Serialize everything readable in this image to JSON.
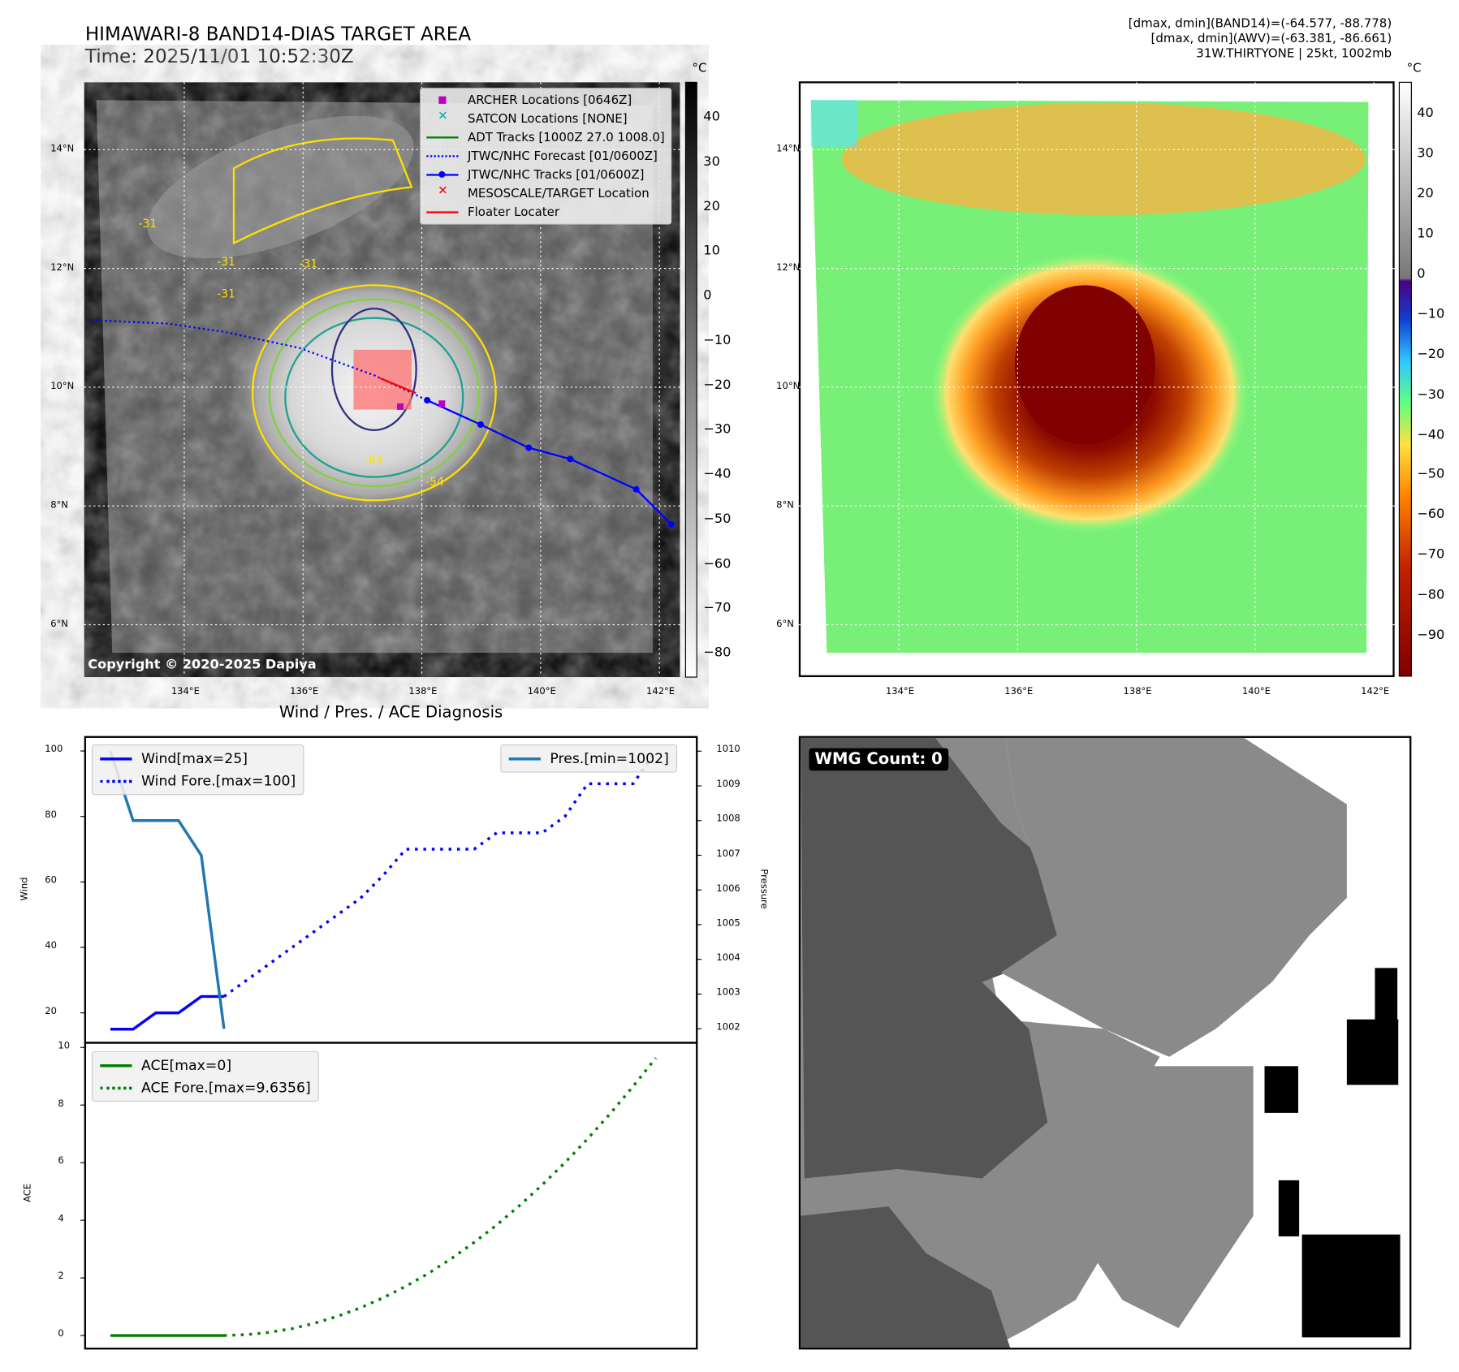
{
  "header": {
    "title_line1": "HIMAWARI-8 BAND14-DIAS TARGET AREA",
    "title_line2": "Time: 2025/11/01 10:52:30Z",
    "info_line1": "[dmax, dmin](BAND14)=(-64.577, -88.778)",
    "info_line2": "[dmax, dmin](AWV)=(-63.381, -86.661)",
    "info_line3": "31W.THIRTYONE | 25kt, 1002mb"
  },
  "maps": {
    "lat_labels": [
      "14°N",
      "12°N",
      "10°N",
      "8°N",
      "6°N"
    ],
    "lat_values": [
      14,
      12,
      10,
      8,
      6
    ],
    "lon_labels": [
      "134°E",
      "136°E",
      "138°E",
      "140°E",
      "142°E"
    ],
    "lon_values": [
      134,
      136,
      138,
      140,
      142
    ],
    "colorbar_unit": "°C",
    "left_colorbar_ticks": [
      "40",
      "30",
      "20",
      "10",
      "0",
      "−10",
      "−20",
      "−30",
      "−40",
      "−50",
      "−60",
      "−70",
      "−80"
    ],
    "left_colorbar_range": [
      48,
      -85
    ],
    "right_colorbar_ticks": [
      "40",
      "30",
      "20",
      "10",
      "0",
      "−10",
      "−20",
      "−30",
      "−40",
      "−50",
      "−60",
      "−70",
      "−80",
      "−90"
    ],
    "right_colorbar_range": [
      48,
      -100
    ],
    "copyright": "Copyright © 2020-2025 Dapiya",
    "contour_labels": [
      "-31",
      "-31",
      "-31",
      "-31",
      "-64",
      "-54"
    ],
    "legend": [
      {
        "label": "ARCHER Locations [0646Z]",
        "color": "#c000c0",
        "style": "square"
      },
      {
        "label": "SATCON Locations [NONE]",
        "color": "#00b0b0",
        "style": "x"
      },
      {
        "label": "ADT Tracks [1000Z 27.0 1008.0]",
        "color": "#008000",
        "style": "line"
      },
      {
        "label": "JTWC/NHC Forecast [01/0600Z]",
        "color": "#0000ff",
        "style": "dotted"
      },
      {
        "label": "JTWC/NHC Tracks [01/0600Z]",
        "color": "#0000ff",
        "style": "line-dot"
      },
      {
        "label": "MESOSCALE/TARGET Location",
        "color": "#ff0000",
        "style": "x"
      },
      {
        "label": "Floater Locater",
        "color": "#ff0000",
        "style": "line"
      }
    ],
    "jtwc_track": [
      [
        138.09,
        9.78
      ],
      [
        138.99,
        9.37
      ],
      [
        139.8,
        8.98
      ],
      [
        140.5,
        8.79
      ],
      [
        141.61,
        8.28
      ],
      [
        142.2,
        7.69
      ]
    ],
    "jtwc_forecast": [
      [
        132.43,
        11.13
      ],
      [
        133.73,
        11.07
      ],
      [
        134.68,
        10.93
      ],
      [
        135.94,
        10.66
      ],
      [
        136.49,
        10.46
      ],
      [
        137.2,
        10.2
      ],
      [
        138.09,
        9.78
      ]
    ],
    "archer_locations": [
      [
        137.63,
        9.68
      ],
      [
        138.33,
        9.73
      ]
    ],
    "floater_line": [
      [
        137.3,
        10.15
      ],
      [
        137.9,
        9.9
      ]
    ]
  },
  "chart_data": [
    {
      "type": "line",
      "title": "Wind / Pres. / ACE Diagnosis",
      "ylabel": "Wind",
      "y2label": "Pressure",
      "ylim": [
        12,
        104
      ],
      "y2lim": [
        1001.6,
        1010.2
      ],
      "yticks": [
        "100",
        "80",
        "60",
        "40",
        "20"
      ],
      "y2ticks": [
        "1010",
        "1009",
        "1008",
        "1007",
        "1006",
        "1005",
        "1004",
        "1003",
        "1002"
      ],
      "series": [
        {
          "name": "Wind[max=25]",
          "color": "#0000ff",
          "style": "solid",
          "x": [
            0,
            1,
            2,
            3,
            4,
            5
          ],
          "values": [
            15,
            15,
            20,
            20,
            25,
            25
          ]
        },
        {
          "name": "Wind Fore.[max=100]",
          "color": "#0000ff",
          "style": "dotted",
          "x": [
            5,
            6,
            7,
            8,
            9,
            10,
            11,
            12,
            13,
            14,
            15,
            16,
            17,
            18,
            19,
            20,
            21,
            22,
            23,
            24
          ],
          "values": [
            25,
            30,
            35,
            40,
            45,
            50,
            55,
            62,
            70,
            70,
            70,
            70,
            75,
            75,
            75,
            80,
            90,
            90,
            90,
            100
          ]
        },
        {
          "name": "Pres.[min=1002]",
          "color": "#1f77b4",
          "style": "solid",
          "axis": "right",
          "x": [
            0,
            1,
            2,
            3,
            4,
            5
          ],
          "values": [
            1010,
            1008,
            1008,
            1008,
            1007,
            1002
          ]
        }
      ]
    },
    {
      "type": "line",
      "ylabel": "ACE",
      "ylim": [
        -0.5,
        10
      ],
      "yticks": [
        "10",
        "8",
        "6",
        "4",
        "2",
        "0"
      ],
      "series": [
        {
          "name": "ACE[max=0]",
          "color": "#008000",
          "style": "solid",
          "x": [
            0,
            1,
            2,
            3,
            4,
            5
          ],
          "values": [
            0,
            0,
            0,
            0,
            0,
            0
          ]
        },
        {
          "name": "ACE Fore.[max=9.6356]",
          "color": "#008000",
          "style": "dotted",
          "x": [
            5,
            6,
            7,
            8,
            9,
            10,
            11,
            12,
            13,
            14,
            15,
            16,
            17,
            18,
            19,
            20,
            21,
            22,
            23,
            24
          ],
          "values": [
            0,
            0.03,
            0.11,
            0.24,
            0.43,
            0.67,
            0.96,
            1.31,
            1.71,
            2.16,
            2.67,
            3.23,
            3.84,
            4.51,
            5.23,
            6.0,
            6.83,
            7.71,
            8.65,
            9.6356
          ]
        }
      ]
    }
  ],
  "wmg": {
    "label": "WMG Count: 0"
  }
}
